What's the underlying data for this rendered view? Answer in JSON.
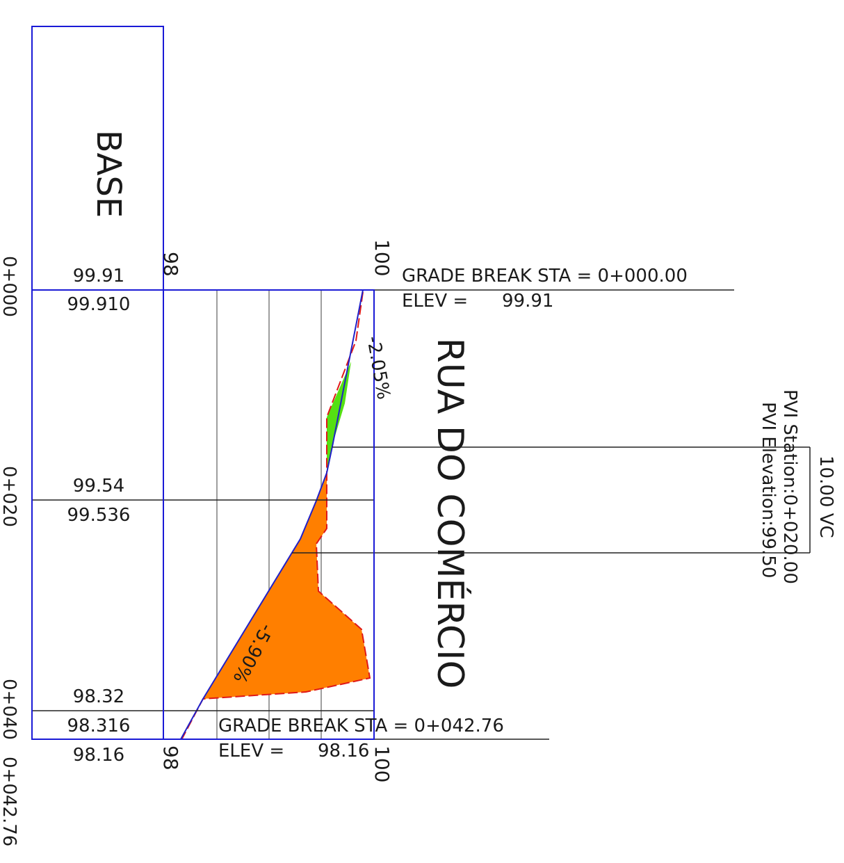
{
  "header": {
    "title": "BASE",
    "road_name": "RUA DO COMÉRCIO"
  },
  "axis": {
    "elev_top_left": "98",
    "elev_top_right": "100",
    "elev_bottom_left": "98",
    "elev_bottom_right": "100"
  },
  "stations": [
    {
      "label": "0+000",
      "profile": "99.91",
      "existing": "99.910"
    },
    {
      "label": "0+020",
      "profile": "99.54",
      "existing": "99.536"
    },
    {
      "label": "0+040",
      "profile": "98.32",
      "existing": "98.316"
    },
    {
      "label": "0+042.76",
      "profile": "98.16"
    }
  ],
  "grades": {
    "upper": "-2.05%",
    "lower": "-5.90%"
  },
  "grade_break_start": {
    "sta_text": "GRADE BREAK STA = 0+000.00",
    "elev_label": "ELEV =",
    "elev_value": "99.91"
  },
  "grade_break_end": {
    "sta_text": "GRADE BREAK STA = 0+042.76",
    "elev_label": "ELEV =",
    "elev_value": "98.16"
  },
  "pvi": {
    "vc": "10.00 VC",
    "station": "PVI Station:0+020.00",
    "elevation": "PVI Elevation:99.50"
  },
  "colors": {
    "frame": "#1a1ad6",
    "grid": "#9e9e9e",
    "cut_fill": "#ff7f00",
    "fill_green": "#55e012",
    "existing_line": "#e01818",
    "design_line": "#2020c8"
  }
}
